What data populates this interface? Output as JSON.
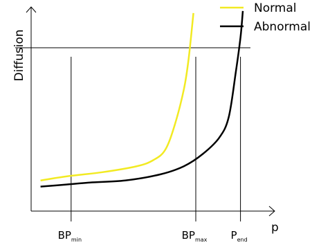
{
  "chart_data": {
    "type": "line",
    "title": "",
    "xlabel": "p",
    "ylabel": "Diffusion",
    "xlim": [
      0,
      1
    ],
    "ylim": [
      0,
      1
    ],
    "grid": false,
    "legend_position": "top-right",
    "reference_lines": {
      "vertical": [
        {
          "label_main": "BP",
          "label_sub": "min",
          "x": 0.17
        },
        {
          "label_main": "BP",
          "label_sub": "max",
          "x": 0.7
        },
        {
          "label_main": "P",
          "label_sub": "end",
          "x": 0.89
        }
      ],
      "horizontal": [
        {
          "y": 0.8
        }
      ]
    },
    "series": [
      {
        "name": "Normal",
        "color": "#f2ea22",
        "points": [
          [
            0.04,
            0.15
          ],
          [
            0.15,
            0.17
          ],
          [
            0.3,
            0.19
          ],
          [
            0.45,
            0.22
          ],
          [
            0.52,
            0.25
          ],
          [
            0.57,
            0.3
          ],
          [
            0.61,
            0.42
          ],
          [
            0.65,
            0.6
          ],
          [
            0.67,
            0.75
          ],
          [
            0.69,
            0.97
          ]
        ]
      },
      {
        "name": "Abnormal",
        "color": "#000000",
        "points": [
          [
            0.04,
            0.12
          ],
          [
            0.15,
            0.13
          ],
          [
            0.25,
            0.14
          ],
          [
            0.4,
            0.15
          ],
          [
            0.55,
            0.18
          ],
          [
            0.65,
            0.22
          ],
          [
            0.73,
            0.28
          ],
          [
            0.8,
            0.36
          ],
          [
            0.84,
            0.46
          ],
          [
            0.87,
            0.68
          ],
          [
            0.89,
            0.85
          ],
          [
            0.9,
            0.98
          ]
        ]
      }
    ]
  }
}
